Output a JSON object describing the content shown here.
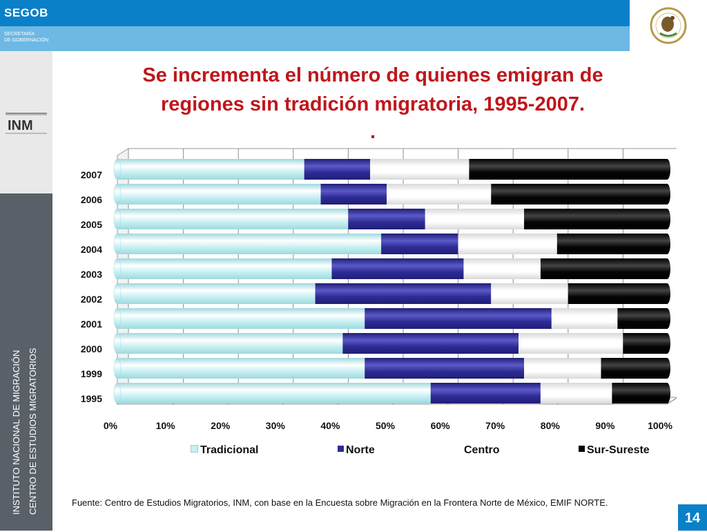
{
  "header": {
    "brand": "SEGOB",
    "brand_sub_1": "SECRETARÍA",
    "brand_sub_2": "DE GOBERNACIÓN",
    "seal_alt": "ESTADOS UNIDOS MEXICANOS"
  },
  "sidebar": {
    "logo_top": "SECRETARÍA DE GOBERNACIÓN",
    "logo_mid": "INM",
    "logo_bottom": "INSTITUTO NACIONAL DE MIGRACIÓN",
    "vertical_1": "INSTITUTO NACIONAL DE MIGRACIÓN",
    "vertical_2": "CENTRO DE ESTUDIOS MIGRATORIOS"
  },
  "slide": {
    "title_line1": "Se incrementa el número de quienes emigran de",
    "title_line2": "regiones sin tradición migratoria, 1995-2007.",
    "title_dot": ".",
    "source": "Fuente: Centro de Estudios Migratorios, INM, con base en la Encuesta sobre Migración en la Frontera Norte de México, EMIF NORTE.",
    "page_number": "14"
  },
  "colors": {
    "tradicional": "#c7f0f3",
    "norte": "#2e2c94",
    "centro": "#ffffff",
    "sursureste": "#050505"
  },
  "chart_data": {
    "type": "bar",
    "orientation": "horizontal",
    "stacked": "percent",
    "categories": [
      "1995",
      "1999",
      "2000",
      "2001",
      "2002",
      "2003",
      "2004",
      "2005",
      "2006",
      "2007"
    ],
    "series": [
      {
        "name": "Tradicional",
        "values": [
          57,
          45,
          41,
          45,
          36,
          39,
          48,
          42,
          37,
          34
        ]
      },
      {
        "name": "Norte",
        "values": [
          20,
          29,
          32,
          34,
          32,
          24,
          14,
          14,
          12,
          12
        ]
      },
      {
        "name": "Centro",
        "values": [
          13,
          14,
          19,
          12,
          14,
          14,
          18,
          18,
          19,
          18
        ]
      },
      {
        "name": "Sur-Sureste",
        "values": [
          10,
          12,
          8,
          9,
          18,
          23,
          20,
          26,
          32,
          36
        ]
      }
    ],
    "x_ticks": [
      "0%",
      "10%",
      "20%",
      "30%",
      "40%",
      "50%",
      "60%",
      "70%",
      "80%",
      "90%",
      "100%"
    ],
    "xlim": [
      0,
      100
    ],
    "grid": true,
    "legend": "bottom"
  }
}
